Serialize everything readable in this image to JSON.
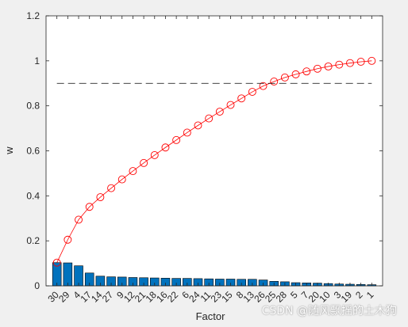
{
  "chart_data": {
    "type": "bar",
    "xlabel": "Factor",
    "ylabel": "w",
    "ylim": [
      0,
      1.2
    ],
    "yticks": [
      "0",
      "0.2",
      "0.4",
      "0.6",
      "0.8",
      "1",
      "1.2"
    ],
    "grid": false,
    "categories": [
      "30",
      "29",
      "4",
      "17",
      "14",
      "27",
      "9",
      "12",
      "21",
      "18",
      "16",
      "22",
      "6",
      "24",
      "11",
      "23",
      "15",
      "8",
      "13",
      "26",
      "25",
      "28",
      "5",
      "7",
      "20",
      "10",
      "3",
      "19",
      "2",
      "1"
    ],
    "series": [
      {
        "type": "bar",
        "values": [
          0.103,
          0.102,
          0.089,
          0.057,
          0.043,
          0.04,
          0.039,
          0.037,
          0.036,
          0.035,
          0.034,
          0.033,
          0.033,
          0.032,
          0.031,
          0.03,
          0.03,
          0.029,
          0.029,
          0.026,
          0.02,
          0.018,
          0.014,
          0.013,
          0.012,
          0.01,
          0.008,
          0.007,
          0.006,
          0.005
        ],
        "color": "#0072bd"
      },
      {
        "type": "line",
        "marker": "circle",
        "values": [
          0.103,
          0.205,
          0.294,
          0.351,
          0.394,
          0.434,
          0.473,
          0.51,
          0.546,
          0.581,
          0.615,
          0.648,
          0.681,
          0.713,
          0.744,
          0.774,
          0.804,
          0.833,
          0.862,
          0.888,
          0.908,
          0.926,
          0.94,
          0.953,
          0.965,
          0.975,
          0.983,
          0.99,
          0.996,
          1.0
        ],
        "color": "#ff0000"
      }
    ],
    "reference_line": {
      "y": 0.9,
      "style": "dashed",
      "color": "#000000"
    }
  },
  "watermark": "CSDN @随风飘摇的土木狗"
}
